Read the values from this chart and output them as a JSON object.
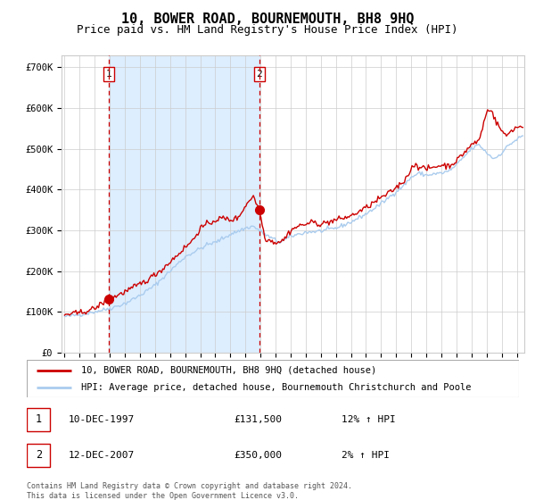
{
  "title": "10, BOWER ROAD, BOURNEMOUTH, BH8 9HQ",
  "subtitle": "Price paid vs. HM Land Registry's House Price Index (HPI)",
  "legend_line1": "10, BOWER ROAD, BOURNEMOUTH, BH8 9HQ (detached house)",
  "legend_line2": "HPI: Average price, detached house, Bournemouth Christchurch and Poole",
  "annotation1_label": "1",
  "annotation1_date": "10-DEC-1997",
  "annotation1_price": "£131,500",
  "annotation1_hpi": "12% ↑ HPI",
  "annotation2_label": "2",
  "annotation2_date": "12-DEC-2007",
  "annotation2_price": "£350,000",
  "annotation2_hpi": "2% ↑ HPI",
  "footer": "Contains HM Land Registry data © Crown copyright and database right 2024.\nThis data is licensed under the Open Government Licence v3.0.",
  "sale1_x": 1997.92,
  "sale1_y": 131500,
  "sale2_x": 2007.92,
  "sale2_y": 350000,
  "vline1_x": 1997.92,
  "vline2_x": 2007.92,
  "shaded_start": 1997.92,
  "shaded_end": 2007.92,
  "ylim": [
    0,
    730000
  ],
  "xlim_start": 1994.8,
  "xlim_end": 2025.5,
  "yticks": [
    0,
    100000,
    200000,
    300000,
    400000,
    500000,
    600000,
    700000
  ],
  "ytick_labels": [
    "£0",
    "£100K",
    "£200K",
    "£300K",
    "£400K",
    "£500K",
    "£600K",
    "£700K"
  ],
  "xticks": [
    1995,
    1996,
    1997,
    1998,
    1999,
    2000,
    2001,
    2002,
    2003,
    2004,
    2005,
    2006,
    2007,
    2008,
    2009,
    2010,
    2011,
    2012,
    2013,
    2014,
    2015,
    2016,
    2017,
    2018,
    2019,
    2020,
    2021,
    2022,
    2023,
    2024,
    2025
  ],
  "line_color_red": "#cc0000",
  "line_color_blue": "#aaccee",
  "shaded_color": "#ddeeff",
  "vline_color": "#cc0000",
  "dot_color": "#cc0000",
  "background_color": "#ffffff",
  "grid_color": "#cccccc",
  "title_fontsize": 11,
  "subtitle_fontsize": 9,
  "ann_box_color": "#cc0000",
  "legend_border_color": "#aaaaaa"
}
